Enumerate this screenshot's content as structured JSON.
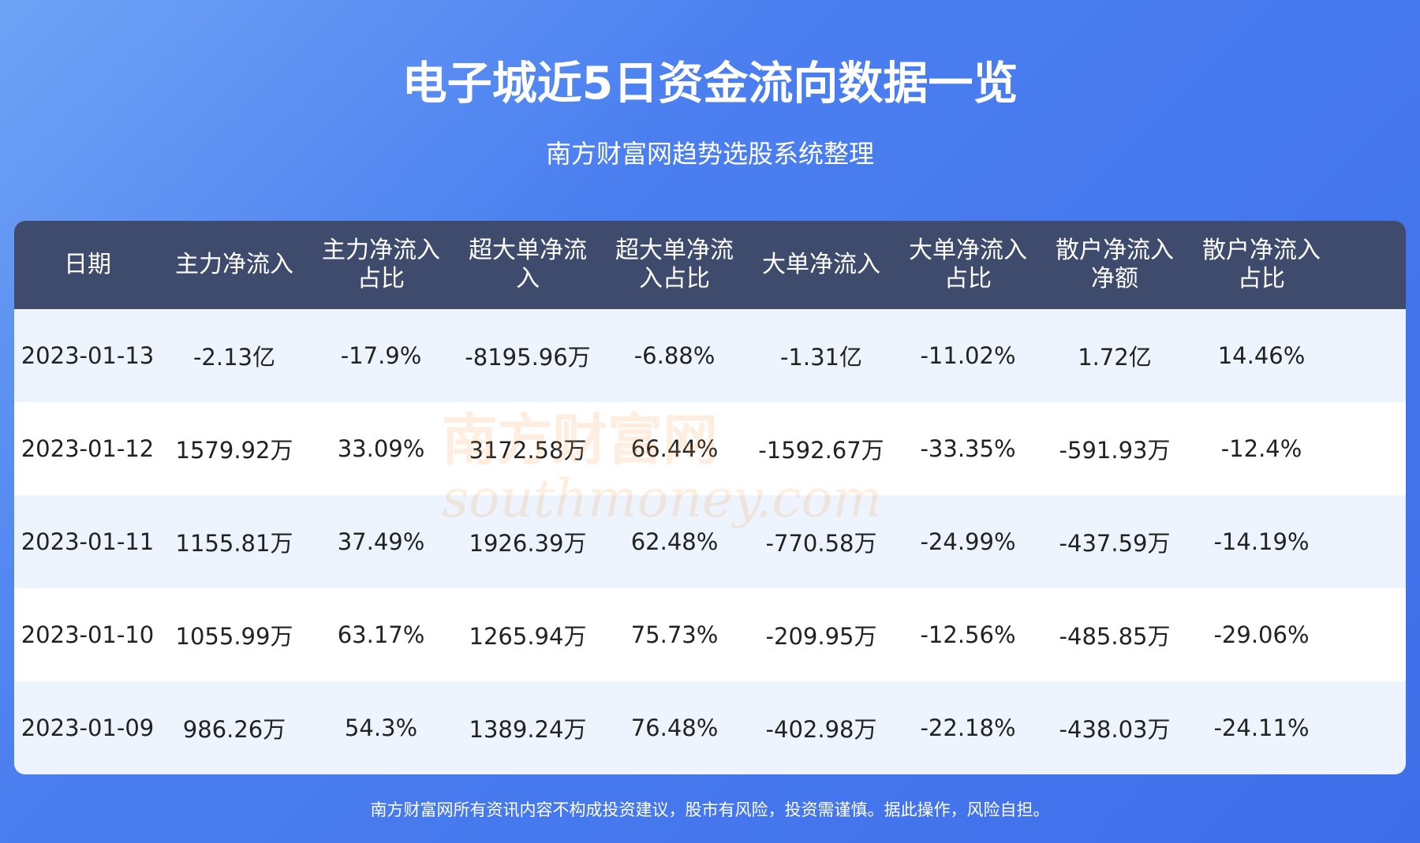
{
  "header": {
    "title": "电子城近5日资金流向数据一览",
    "subtitle": "南方财富网趋势选股系统整理"
  },
  "table": {
    "columns": [
      "日期",
      "主力净流入",
      "主力净流入占比",
      "超大单净流入",
      "超大单净流入占比",
      "大单净流入",
      "大单净流入占比",
      "散户净流入净额",
      "散户净流入占比"
    ],
    "rows": [
      [
        "2023-01-13",
        "-2.13亿",
        "-17.9%",
        "-8195.96万",
        "-6.88%",
        "-1.31亿",
        "-11.02%",
        "1.72亿",
        "14.46%"
      ],
      [
        "2023-01-12",
        "1579.92万",
        "33.09%",
        "3172.58万",
        "66.44%",
        "-1592.67万",
        "-33.35%",
        "-591.93万",
        "-12.4%"
      ],
      [
        "2023-01-11",
        "1155.81万",
        "37.49%",
        "1926.39万",
        "62.48%",
        "-770.58万",
        "-24.99%",
        "-437.59万",
        "-14.19%"
      ],
      [
        "2023-01-10",
        "1055.99万",
        "63.17%",
        "1265.94万",
        "75.73%",
        "-209.95万",
        "-12.56%",
        "-485.85万",
        "-29.06%"
      ],
      [
        "2023-01-09",
        "986.26万",
        "54.3%",
        "1389.24万",
        "76.48%",
        "-402.98万",
        "-22.18%",
        "-438.03万",
        "-24.11%"
      ]
    ]
  },
  "watermark": [
    "南方财富网",
    "southmoney.com"
  ],
  "footer": "南方财富网所有资讯内容不构成投资建议，股市有风险，投资需谨慎。据此操作，风险自担。"
}
